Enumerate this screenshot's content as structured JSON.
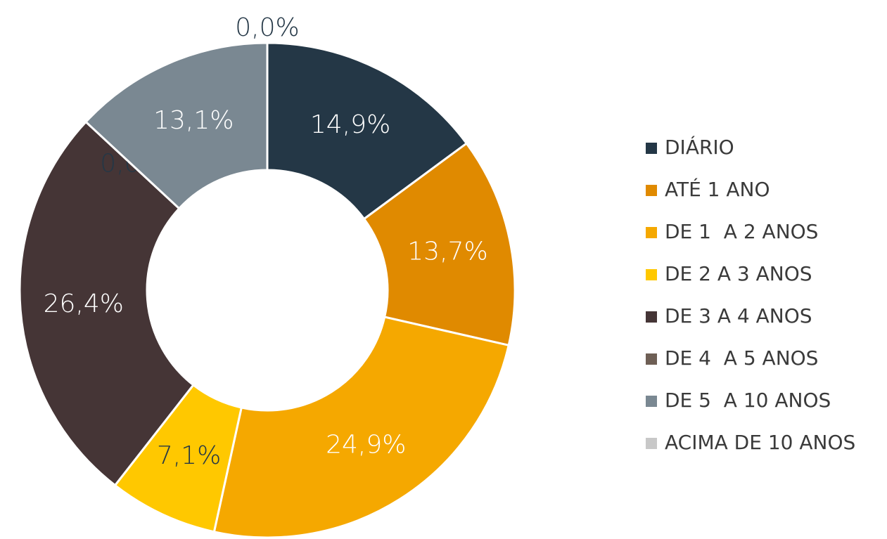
{
  "chart_data": {
    "type": "donut",
    "categories": [
      "DIÁRIO",
      "ATÉ 1 ANO",
      "DE 1  A 2 ANOS",
      "DE 2 A 3 ANOS",
      "DE 3 A 4 ANOS",
      "DE 4  A 5 ANOS",
      "DE 5  A 10 ANOS",
      "ACIMA DE 10 ANOS"
    ],
    "values": [
      14.9,
      13.7,
      24.9,
      7.1,
      26.4,
      0.0,
      13.1,
      0.0
    ],
    "value_labels": [
      "14,9%",
      "13,7%",
      "24,9%",
      "7,1%",
      "26,4%",
      "0,0%",
      "13,1%",
      "0,0%"
    ],
    "colors": [
      "#243746",
      "#e08a00",
      "#f5a800",
      "#ffc800",
      "#453536",
      "#6e5f55",
      "#7a8892",
      "#c8c8c8"
    ],
    "legend": "right"
  }
}
